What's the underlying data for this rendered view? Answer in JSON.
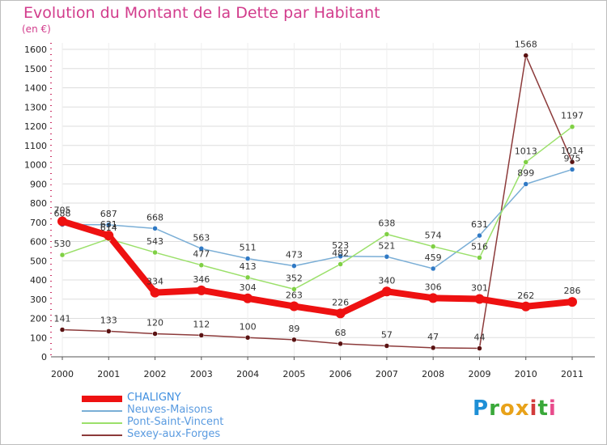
{
  "title": "Evolution du Montant de la Dette par Habitant",
  "unit_label": "(en €)",
  "brand": {
    "text": "Proxiti",
    "colors": [
      "#1e8fd6",
      "#3aa83a",
      "#e8a21a",
      "#e8a21a",
      "#d23c3c",
      "#3aa83a",
      "#e84c8c"
    ]
  },
  "chart_data": {
    "type": "line",
    "title": "Evolution du Montant de la Dette par Habitant",
    "ylabel": "(en €)",
    "xlabel": "",
    "x": [
      "2000",
      "2001",
      "2002",
      "2003",
      "2004",
      "2005",
      "2006",
      "2007",
      "2008",
      "2009",
      "2010",
      "2011"
    ],
    "ylim": [
      0,
      1600
    ],
    "yticks": [
      0,
      100,
      200,
      300,
      400,
      500,
      600,
      700,
      800,
      900,
      1000,
      1100,
      1200,
      1300,
      1400,
      1500,
      1600
    ],
    "grid": "horizontal",
    "legend_position": "bottom-left",
    "series": [
      {
        "name": "CHALIGNY",
        "color": "#ee1111",
        "width": 8,
        "marker_color": "#ee1111",
        "values": [
          705,
          631,
          334,
          346,
          304,
          263,
          226,
          340,
          306,
          301,
          262,
          286
        ],
        "labels": [
          "705",
          "631",
          "334",
          "346",
          "304",
          "263",
          "226",
          "340",
          "306",
          "301",
          "262",
          "286"
        ]
      },
      {
        "name": "Neuves-Maisons",
        "color": "#7aaed6",
        "width": 1.5,
        "marker_color": "#2f79c5",
        "values": [
          688,
          687,
          668,
          563,
          511,
          473,
          523,
          521,
          459,
          631,
          899,
          975
        ],
        "labels": [
          "688",
          "687",
          "668",
          "563",
          "511",
          "473",
          "523",
          "521",
          "459",
          "631",
          "899",
          "975"
        ]
      },
      {
        "name": "Pont-Saint-Vincent",
        "color": "#9be06a",
        "width": 1.5,
        "marker_color": "#7fd044",
        "values": [
          530,
          614,
          543,
          477,
          413,
          352,
          482,
          638,
          574,
          516,
          1013,
          1197
        ],
        "labels": [
          "530",
          "614",
          "543",
          "477",
          "413",
          "352",
          "482",
          "638",
          "574",
          "516",
          "1013",
          "1197"
        ]
      },
      {
        "name": "Sexey-aux-Forges",
        "color": "#8c3a3a",
        "width": 1.5,
        "marker_color": "#5a1212",
        "values": [
          141,
          133,
          120,
          112,
          100,
          89,
          68,
          57,
          47,
          44,
          1568,
          1014
        ],
        "labels": [
          "141",
          "133",
          "120",
          "112",
          "100",
          "89",
          "68",
          "57",
          "47",
          "44",
          "1568",
          "1014"
        ]
      }
    ]
  }
}
